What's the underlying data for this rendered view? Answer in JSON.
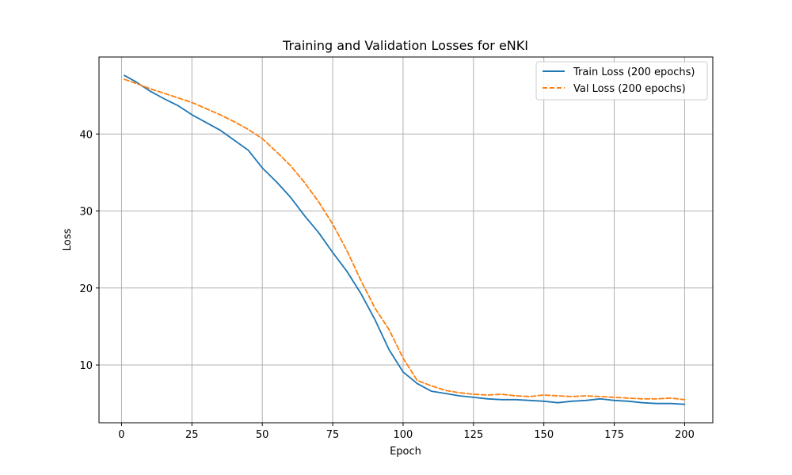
{
  "chart_data": {
    "type": "line",
    "title": "Training and Validation Losses for eNKI",
    "xlabel": "Epoch",
    "ylabel": "Loss",
    "xlim": [
      -8,
      210
    ],
    "ylim": [
      2.5,
      50
    ],
    "xticks": [
      0,
      25,
      50,
      75,
      100,
      125,
      150,
      175,
      200
    ],
    "yticks": [
      10,
      20,
      30,
      40
    ],
    "grid": true,
    "legend_position": "top-right",
    "x": [
      1,
      5,
      10,
      15,
      20,
      25,
      30,
      35,
      40,
      45,
      50,
      55,
      60,
      65,
      70,
      75,
      80,
      85,
      90,
      95,
      100,
      105,
      110,
      115,
      120,
      125,
      130,
      135,
      140,
      145,
      150,
      155,
      160,
      165,
      170,
      175,
      180,
      185,
      190,
      195,
      200
    ],
    "series": [
      {
        "name": "Train Loss (200 epochs)",
        "color": "#1f77b4",
        "style": "solid",
        "values": [
          47.6,
          46.8,
          45.6,
          44.6,
          43.7,
          42.5,
          41.5,
          40.5,
          39.2,
          37.9,
          35.6,
          33.8,
          31.8,
          29.4,
          27.2,
          24.6,
          22.2,
          19.3,
          15.9,
          12.0,
          9.1,
          7.6,
          6.6,
          6.3,
          6.0,
          5.8,
          5.6,
          5.5,
          5.5,
          5.4,
          5.3,
          5.1,
          5.3,
          5.4,
          5.6,
          5.4,
          5.3,
          5.1,
          5.0,
          5.0,
          4.9
        ]
      },
      {
        "name": "Val Loss (200 epochs)",
        "color": "#ff7f0e",
        "style": "dashed",
        "values": [
          47.1,
          46.6,
          45.9,
          45.3,
          44.7,
          44.1,
          43.3,
          42.5,
          41.6,
          40.6,
          39.4,
          37.7,
          35.9,
          33.7,
          31.2,
          28.3,
          24.9,
          21.0,
          17.4,
          14.6,
          10.9,
          8.0,
          7.3,
          6.7,
          6.4,
          6.2,
          6.1,
          6.2,
          6.0,
          5.9,
          6.1,
          6.0,
          5.9,
          6.0,
          5.9,
          5.8,
          5.7,
          5.6,
          5.6,
          5.7,
          5.5
        ]
      }
    ]
  }
}
